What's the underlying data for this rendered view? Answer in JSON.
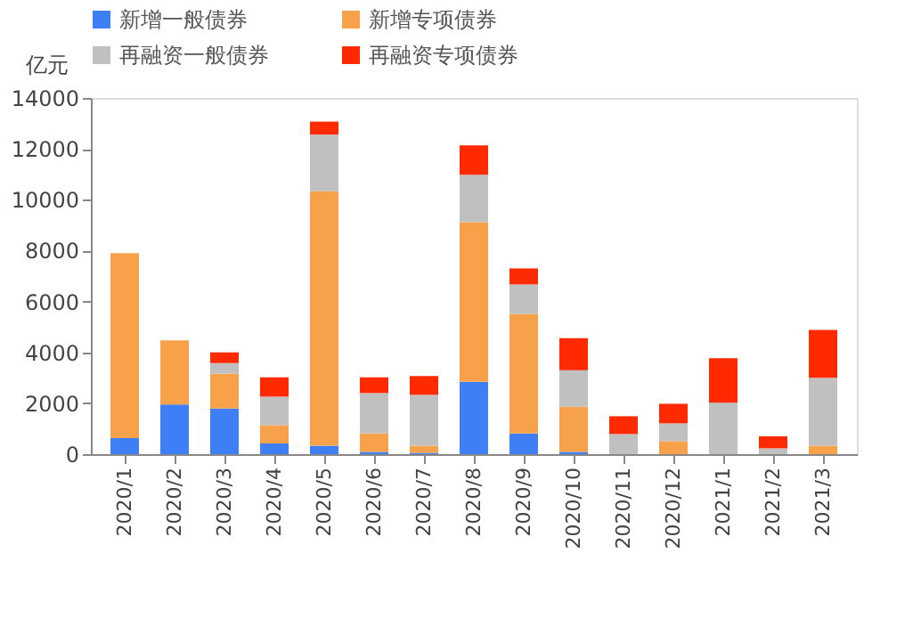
{
  "chart_data": {
    "type": "bar",
    "stacked": true,
    "ylabel": "亿元",
    "categories": [
      "2020/1",
      "2020/2",
      "2020/3",
      "2020/4",
      "2020/5",
      "2020/6",
      "2020/7",
      "2020/8",
      "2020/9",
      "2020/10",
      "2020/11",
      "2020/12",
      "2021/1",
      "2021/2",
      "2021/3"
    ],
    "series": [
      {
        "name": "新增一般债券",
        "color": "#3f7ff5",
        "values": [
          630,
          1950,
          1790,
          420,
          330,
          90,
          50,
          2840,
          810,
          90,
          0,
          0,
          0,
          0,
          0
        ]
      },
      {
        "name": "新增专项债券",
        "color": "#f7a24a",
        "values": [
          7270,
          2520,
          1370,
          720,
          10000,
          720,
          280,
          6280,
          4700,
          1770,
          0,
          510,
          0,
          0,
          330
        ]
      },
      {
        "name": "再融资一般债券",
        "color": "#c0c0c0",
        "values": [
          0,
          0,
          420,
          1120,
          2230,
          1590,
          2000,
          1860,
          1160,
          1440,
          790,
          700,
          2020,
          230,
          2670
        ]
      },
      {
        "name": "再融资专项债券",
        "color": "#ff2a00",
        "values": [
          0,
          0,
          420,
          760,
          510,
          620,
          740,
          1160,
          630,
          1260,
          700,
          770,
          1750,
          470,
          1880
        ]
      }
    ],
    "ylim": [
      0,
      14000
    ],
    "yticks": [
      0,
      2000,
      4000,
      6000,
      8000,
      10000,
      12000,
      14000
    ],
    "grid": false,
    "legend": "top"
  }
}
